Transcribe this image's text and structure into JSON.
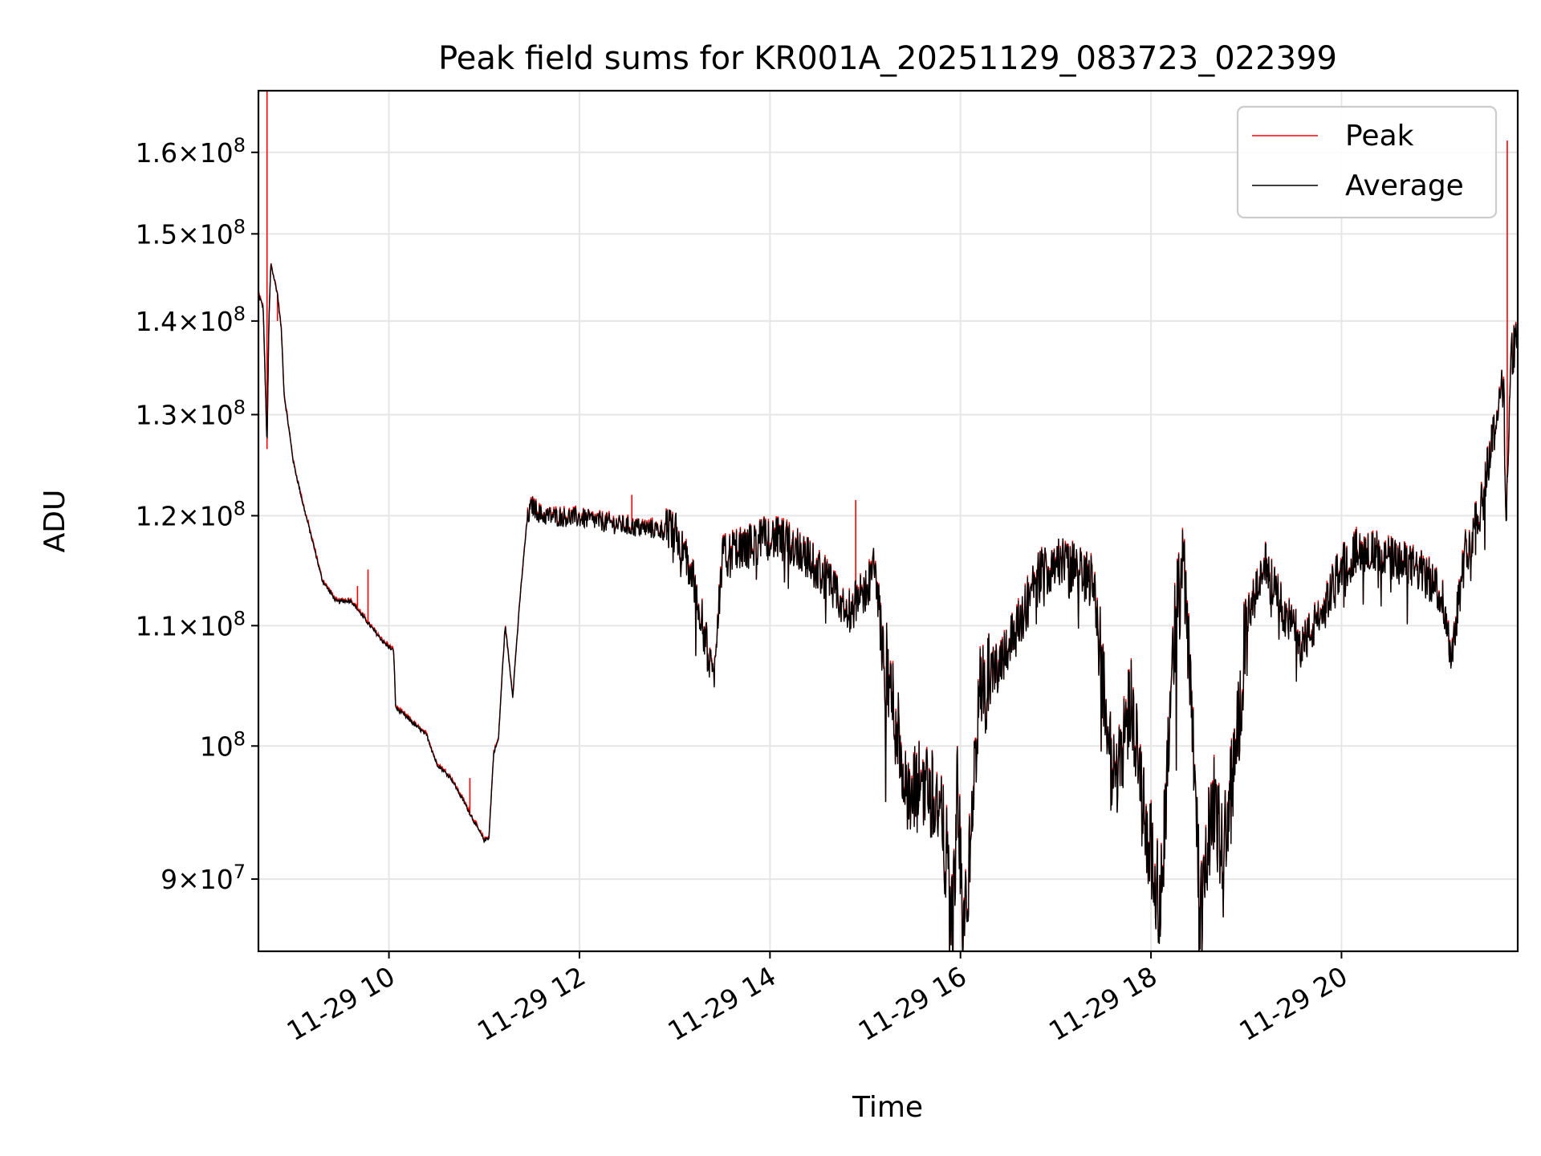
{
  "chart_data": {
    "type": "line",
    "title": "Peak field sums for KR001A_20251129_083723_022399",
    "xlabel": "Time",
    "ylabel": "ADU",
    "yscale": "log",
    "ylim": [
      85000000,
      168000000
    ],
    "xlim_hours": [
      8.63,
      21.85
    ],
    "grid": true,
    "legend_position": "top-right",
    "x_ticks": [
      {
        "hour": 10,
        "label": "11-29 10"
      },
      {
        "hour": 12,
        "label": "11-29 12"
      },
      {
        "hour": 14,
        "label": "11-29 14"
      },
      {
        "hour": 16,
        "label": "11-29 16"
      },
      {
        "hour": 18,
        "label": "11-29 18"
      },
      {
        "hour": 20,
        "label": "11-29 20"
      }
    ],
    "y_ticks": [
      {
        "value": 90000000,
        "mant": "9",
        "exp": "7"
      },
      {
        "value": 100000000,
        "mant": "",
        "exp": "8"
      },
      {
        "value": 110000000,
        "mant": "1.1",
        "exp": "8"
      },
      {
        "value": 120000000,
        "mant": "1.2",
        "exp": "8"
      },
      {
        "value": 130000000,
        "mant": "1.3",
        "exp": "8"
      },
      {
        "value": 140000000,
        "mant": "1.4",
        "exp": "8"
      },
      {
        "value": 150000000,
        "mant": "1.5",
        "exp": "8"
      },
      {
        "value": 160000000,
        "mant": "1.6",
        "exp": "8"
      }
    ],
    "series": [
      {
        "name": "Peak",
        "color": "#ff0000"
      },
      {
        "name": "Average",
        "color": "#000000"
      }
    ],
    "average_keypoints": [
      [
        8.63,
        143000000
      ],
      [
        8.68,
        141500000
      ],
      [
        8.72,
        126500000
      ],
      [
        8.74,
        140000000
      ],
      [
        8.76,
        146500000
      ],
      [
        8.83,
        143000000
      ],
      [
        8.87,
        139000000
      ],
      [
        8.9,
        132000000
      ],
      [
        9.0,
        125000000
      ],
      [
        9.1,
        121000000
      ],
      [
        9.2,
        117500000
      ],
      [
        9.3,
        114000000
      ],
      [
        9.45,
        112100000
      ],
      [
        9.6,
        112200000
      ],
      [
        9.8,
        110000000
      ],
      [
        9.95,
        108500000
      ],
      [
        10.05,
        107800000
      ],
      [
        10.07,
        103100000
      ],
      [
        10.2,
        102200000
      ],
      [
        10.4,
        100800000
      ],
      [
        10.5,
        98600000
      ],
      [
        10.65,
        97500000
      ],
      [
        10.8,
        95500000
      ],
      [
        10.9,
        94100000
      ],
      [
        11.0,
        92800000
      ],
      [
        11.05,
        93000000
      ],
      [
        11.1,
        99500000
      ],
      [
        11.15,
        100500000
      ],
      [
        11.22,
        110000000
      ],
      [
        11.3,
        104000000
      ],
      [
        11.38,
        112800000
      ],
      [
        11.45,
        119500000
      ],
      [
        11.5,
        121000000
      ],
      [
        11.6,
        120000000
      ],
      [
        12.0,
        119800000
      ],
      [
        12.5,
        119000000
      ],
      [
        13.0,
        118500000
      ],
      [
        13.2,
        114000000
      ],
      [
        13.4,
        105500000
      ],
      [
        13.5,
        116000000
      ],
      [
        14.0,
        118000000
      ],
      [
        14.3,
        117000000
      ],
      [
        14.6,
        114000000
      ],
      [
        14.8,
        111000000
      ],
      [
        15.0,
        113000000
      ],
      [
        15.1,
        115500000
      ],
      [
        15.2,
        107000000
      ],
      [
        15.35,
        101000000
      ],
      [
        15.45,
        95000000
      ],
      [
        15.6,
        97500000
      ],
      [
        15.75,
        96000000
      ],
      [
        15.85,
        92000000
      ],
      [
        15.92,
        87000000
      ],
      [
        15.97,
        97000000
      ],
      [
        16.03,
        85500000
      ],
      [
        16.1,
        92000000
      ],
      [
        16.2,
        104000000
      ],
      [
        16.35,
        106000000
      ],
      [
        16.6,
        110000000
      ],
      [
        16.8,
        114000000
      ],
      [
        17.0,
        116000000
      ],
      [
        17.4,
        114000000
      ],
      [
        17.5,
        105000000
      ],
      [
        17.6,
        97000000
      ],
      [
        17.8,
        104000000
      ],
      [
        17.9,
        96000000
      ],
      [
        18.0,
        92000000
      ],
      [
        18.1,
        88000000
      ],
      [
        18.25,
        110000000
      ],
      [
        18.35,
        115500000
      ],
      [
        18.45,
        100000000
      ],
      [
        18.52,
        87500000
      ],
      [
        18.65,
        96000000
      ],
      [
        18.75,
        92000000
      ],
      [
        18.9,
        100000000
      ],
      [
        19.0,
        110000000
      ],
      [
        19.2,
        115500000
      ],
      [
        19.4,
        111000000
      ],
      [
        19.6,
        108500000
      ],
      [
        19.8,
        111000000
      ],
      [
        20.0,
        115500000
      ],
      [
        20.2,
        117000000
      ],
      [
        20.5,
        116000000
      ],
      [
        20.8,
        115000000
      ],
      [
        21.05,
        113000000
      ],
      [
        21.15,
        107500000
      ],
      [
        21.3,
        116500000
      ],
      [
        21.45,
        120500000
      ],
      [
        21.6,
        128500000
      ],
      [
        21.7,
        133000000
      ],
      [
        21.73,
        120000000
      ],
      [
        21.78,
        136000000
      ],
      [
        21.85,
        139000000
      ]
    ],
    "peak_spikes": [
      [
        8.72,
        168000000
      ],
      [
        8.83,
        140000000
      ],
      [
        9.67,
        113500000
      ],
      [
        9.78,
        115000000
      ],
      [
        10.85,
        97500000
      ],
      [
        12.55,
        122000000
      ],
      [
        14.9,
        121500000
      ],
      [
        21.74,
        161500000
      ]
    ]
  }
}
